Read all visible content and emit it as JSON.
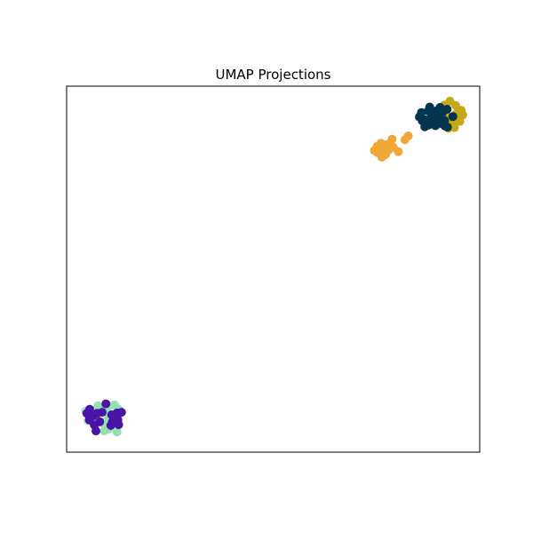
{
  "chart_data": {
    "type": "scatter",
    "title": "UMAP Projections",
    "xlabel": "",
    "ylabel": "",
    "xlim": [
      0,
      100
    ],
    "ylim": [
      0,
      100
    ],
    "grid": false,
    "axis_ticks": false,
    "series": [
      {
        "color": "#95e1b0",
        "points": [
          [
            5.8,
            10.1
          ],
          [
            6.5,
            11.3
          ],
          [
            7.6,
            12.7
          ],
          [
            8.9,
            11.9
          ],
          [
            9.8,
            10.9
          ],
          [
            10.3,
            9.8
          ],
          [
            9.6,
            8.6
          ],
          [
            8.3,
            8.1
          ],
          [
            7.2,
            8.9
          ],
          [
            6.3,
            9.3
          ],
          [
            10.5,
            12.6
          ],
          [
            11.6,
            12.9
          ],
          [
            12.5,
            11.8
          ],
          [
            12.8,
            10.6
          ],
          [
            11.9,
            9.5
          ],
          [
            11.2,
            7.9
          ],
          [
            10.1,
            6.3
          ],
          [
            9.1,
            5.8
          ],
          [
            12.2,
            5.5
          ],
          [
            4.6,
            11.2
          ],
          [
            5.2,
            8.6
          ],
          [
            8.1,
            12.1
          ],
          [
            11.0,
            8.8
          ],
          [
            9.4,
            7.2
          ]
        ]
      },
      {
        "color": "#4a13a8",
        "points": [
          [
            4.9,
            10.6
          ],
          [
            5.6,
            11.7
          ],
          [
            6.4,
            9.9
          ],
          [
            7.4,
            10.6
          ],
          [
            8.6,
            10.9
          ],
          [
            9.5,
            13.2
          ],
          [
            10.9,
            10.2
          ],
          [
            12.2,
            10.7
          ],
          [
            13.3,
            10.9
          ],
          [
            12.4,
            8.8
          ],
          [
            11.1,
            8.3
          ],
          [
            10.7,
            7.3
          ],
          [
            12.6,
            7.5
          ],
          [
            8.0,
            8.3
          ],
          [
            6.7,
            7.4
          ],
          [
            7.1,
            5.8
          ],
          [
            5.5,
            8.8
          ],
          [
            11.5,
            9.2
          ]
        ]
      },
      {
        "color": "#f1a737",
        "points": [
          [
            74.5,
            82.4
          ],
          [
            75.2,
            83.6
          ],
          [
            76.1,
            84.4
          ],
          [
            76.9,
            82.8
          ],
          [
            77.7,
            84.1
          ],
          [
            78.8,
            85.5
          ],
          [
            77.2,
            81.3
          ],
          [
            76.3,
            80.6
          ],
          [
            75.3,
            81.8
          ],
          [
            78.0,
            82.6
          ],
          [
            79.1,
            83.3
          ],
          [
            80.3,
            82.1
          ],
          [
            81.9,
            85.4
          ],
          [
            82.7,
            86.4
          ],
          [
            76.8,
            83.0
          ],
          [
            75.7,
            82.9
          ]
        ]
      },
      {
        "color": "#c4a816",
        "points": [
          [
            90.2,
            93.6
          ],
          [
            91.4,
            94.8
          ],
          [
            92.8,
            95.9
          ],
          [
            94.2,
            94.7
          ],
          [
            95.5,
            93.4
          ],
          [
            95.9,
            92.1
          ],
          [
            94.6,
            91.4
          ],
          [
            93.3,
            90.1
          ],
          [
            92.4,
            88.5
          ],
          [
            93.9,
            88.7
          ],
          [
            94.4,
            92.5
          ],
          [
            93.0,
            91.0
          ],
          [
            91.8,
            92.6
          ],
          [
            95.2,
            90.4
          ]
        ]
      },
      {
        "color": "#04354f",
        "points": [
          [
            85.4,
            91.6
          ],
          [
            85.9,
            92.8
          ],
          [
            86.8,
            90.8
          ],
          [
            87.5,
            93.2
          ],
          [
            87.9,
            94.3
          ],
          [
            88.8,
            92.1
          ],
          [
            89.6,
            93.3
          ],
          [
            90.3,
            91.4
          ],
          [
            90.9,
            92.6
          ],
          [
            91.5,
            90.6
          ],
          [
            90.6,
            89.8
          ],
          [
            89.3,
            89.2
          ],
          [
            87.6,
            89.4
          ],
          [
            86.7,
            88.9
          ],
          [
            88.1,
            91.1
          ],
          [
            92.1,
            93.7
          ],
          [
            90.4,
            94.2
          ],
          [
            92.2,
            88.8
          ],
          [
            89.4,
            90.7
          ],
          [
            91.6,
            89.1
          ],
          [
            93.5,
            91.7
          ],
          [
            86.1,
            90.5
          ]
        ]
      }
    ]
  }
}
